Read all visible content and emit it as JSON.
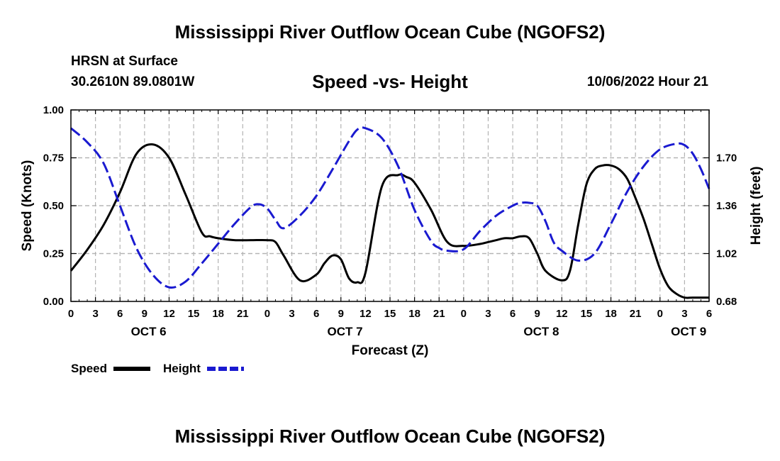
{
  "header": {
    "main_title": "Mississippi River Outflow Ocean Cube (NGOFS2)",
    "station": "HRSN at Surface",
    "coordinates": "30.2610N  89.0801W",
    "chart_title": "Speed -vs- Height",
    "timestamp": "10/06/2022 Hour 21"
  },
  "footer": {
    "repeated_title": "Mississippi River Outflow Ocean Cube (NGOFS2)"
  },
  "chart_data": {
    "type": "line",
    "title": "Speed -vs- Height",
    "xlabel": "Forecast (Z)",
    "ylabel_left": "Speed (Knots)",
    "ylabel_right": "Height (feet)",
    "x_unit": "hours since 2022-10-06 00Z",
    "xlim": [
      0,
      78
    ],
    "ylim_left": [
      0,
      1.0
    ],
    "ylim_right": [
      0.68,
      2.04
    ],
    "left_ticks": [
      "0.00",
      "0.25",
      "0.50",
      "0.75",
      "1.00"
    ],
    "left_tick_values": [
      0,
      0.25,
      0.5,
      0.75,
      1.0
    ],
    "right_ticks": [
      "0.68",
      "1.02",
      "1.36",
      "1.70"
    ],
    "right_tick_values": [
      0.68,
      1.02,
      1.36,
      1.7
    ],
    "x_ticks": [
      0,
      3,
      6,
      9,
      12,
      15,
      18,
      21,
      24,
      27,
      30,
      33,
      36,
      39,
      42,
      45,
      48,
      51,
      54,
      57,
      60,
      63,
      66,
      69,
      72,
      75,
      78
    ],
    "x_tick_labels": [
      "0",
      "3",
      "6",
      "9",
      "12",
      "15",
      "18",
      "21",
      "0",
      "3",
      "6",
      "9",
      "12",
      "15",
      "18",
      "21",
      "0",
      "3",
      "6",
      "9",
      "12",
      "15",
      "18",
      "21",
      "0",
      "3",
      "6"
    ],
    "day_labels": [
      {
        "text": "OCT 6",
        "x": 9.5
      },
      {
        "text": "OCT 7",
        "x": 33.5
      },
      {
        "text": "OCT 8",
        "x": 57.5
      },
      {
        "text": "OCT 9",
        "x": 75.5
      }
    ],
    "grid": true,
    "series": [
      {
        "name": "Speed",
        "axis": "left",
        "color": "#000000",
        "dash": "solid",
        "x": [
          0,
          2,
          4,
          6,
          8,
          10,
          12,
          14,
          16,
          17,
          18,
          20,
          22,
          24,
          25,
          26,
          28,
          30,
          31,
          32,
          33,
          34,
          35,
          36,
          38,
          40,
          41,
          42,
          44,
          46,
          48,
          50,
          51,
          52,
          53,
          54,
          55,
          56,
          57,
          58,
          60,
          61,
          62,
          63,
          64,
          65,
          66,
          67,
          68,
          69,
          70,
          71,
          72,
          73,
          74,
          75,
          76,
          77,
          78
        ],
        "y": [
          0.16,
          0.27,
          0.4,
          0.57,
          0.77,
          0.82,
          0.75,
          0.56,
          0.36,
          0.34,
          0.33,
          0.32,
          0.32,
          0.32,
          0.31,
          0.24,
          0.11,
          0.14,
          0.2,
          0.24,
          0.22,
          0.12,
          0.1,
          0.15,
          0.6,
          0.66,
          0.65,
          0.62,
          0.48,
          0.31,
          0.29,
          0.3,
          0.31,
          0.32,
          0.33,
          0.33,
          0.34,
          0.33,
          0.25,
          0.16,
          0.11,
          0.16,
          0.4,
          0.61,
          0.69,
          0.71,
          0.71,
          0.69,
          0.64,
          0.54,
          0.43,
          0.3,
          0.17,
          0.08,
          0.04,
          0.02,
          0.02,
          0.02,
          0.02
        ]
      },
      {
        "name": "Height",
        "axis": "right",
        "color": "#1a1ad0",
        "dash": "dashed",
        "x": [
          0,
          2,
          4,
          6,
          8,
          10,
          12,
          14,
          16,
          18,
          20,
          22,
          23,
          24,
          25,
          26,
          28,
          30,
          32,
          34,
          35,
          36,
          38,
          40,
          42,
          44,
          45,
          46,
          48,
          50,
          52,
          54,
          55,
          56,
          57,
          58,
          59,
          60,
          62,
          64,
          66,
          68,
          70,
          72,
          74,
          75,
          76,
          77,
          78
        ],
        "y": [
          1.91,
          1.81,
          1.66,
          1.36,
          1.06,
          0.87,
          0.78,
          0.82,
          0.95,
          1.09,
          1.23,
          1.35,
          1.37,
          1.34,
          1.26,
          1.2,
          1.29,
          1.43,
          1.62,
          1.82,
          1.9,
          1.91,
          1.84,
          1.64,
          1.33,
          1.11,
          1.06,
          1.04,
          1.05,
          1.18,
          1.29,
          1.36,
          1.38,
          1.38,
          1.36,
          1.25,
          1.1,
          1.04,
          0.97,
          1.02,
          1.23,
          1.46,
          1.64,
          1.76,
          1.8,
          1.79,
          1.73,
          1.62,
          1.48
        ]
      }
    ],
    "legend": {
      "position": "bottom-left",
      "entries": [
        {
          "label": "Speed",
          "color": "#000000",
          "dash": "solid"
        },
        {
          "label": "Height",
          "color": "#1a1ad0",
          "dash": "dashed"
        }
      ]
    }
  }
}
